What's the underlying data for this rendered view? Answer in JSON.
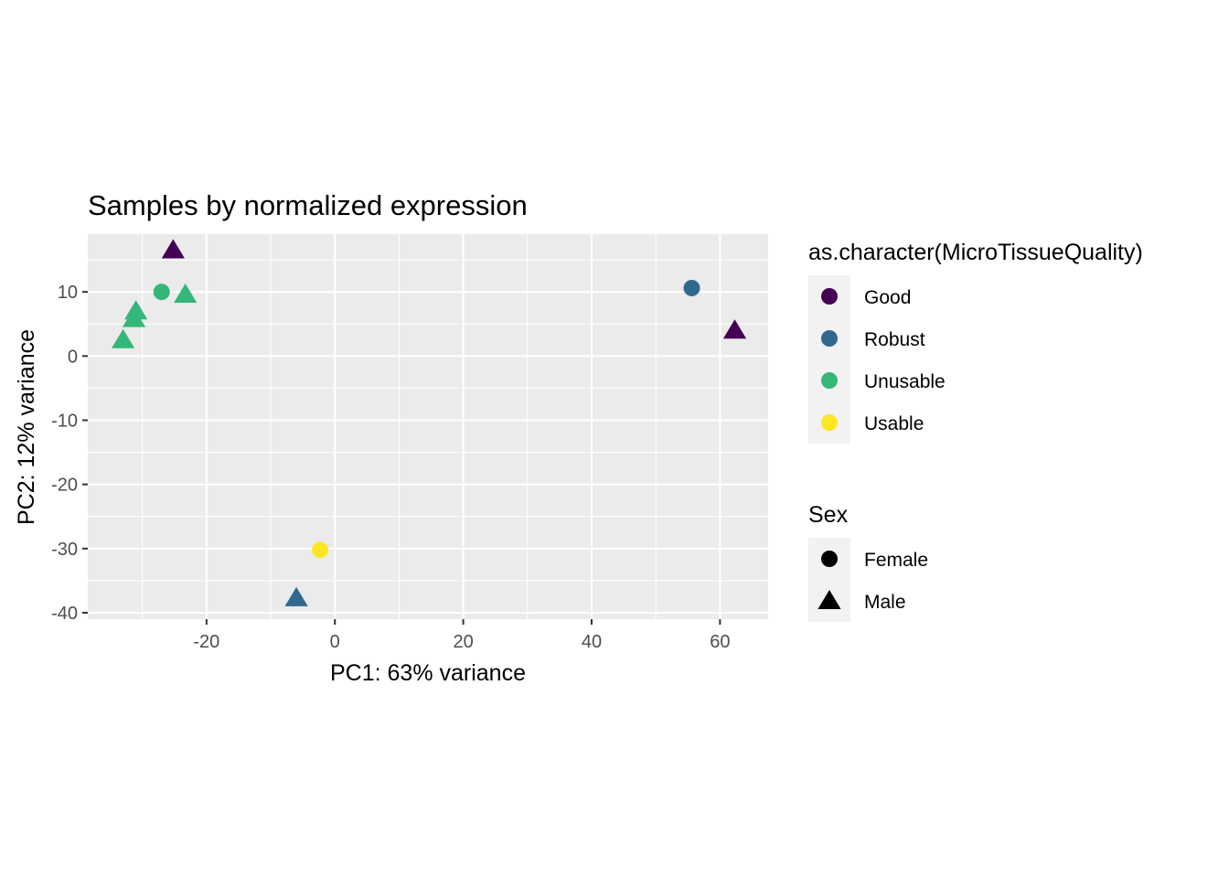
{
  "chart_data": {
    "type": "scatter",
    "title": "Samples by normalized expression",
    "xlabel": "PC1: 63% variance",
    "ylabel": "PC2: 12% variance",
    "xlim": [
      -38.5,
      67.5
    ],
    "ylim": [
      -41,
      19
    ],
    "x_ticks": [
      -20,
      0,
      20,
      40,
      60
    ],
    "y_ticks": [
      -40,
      -30,
      -20,
      -10,
      0,
      10
    ],
    "x_tick_labels": [
      "-20",
      "0",
      "20",
      "40",
      "60"
    ],
    "y_tick_labels": [
      "-40",
      "-30",
      "-20",
      "-10",
      "0",
      "10"
    ],
    "grid": true,
    "legend_position": "right",
    "points": [
      {
        "x": -25.2,
        "y": 16.5,
        "quality": "Good",
        "sex": "Male"
      },
      {
        "x": 62.3,
        "y": 4.0,
        "quality": "Good",
        "sex": "Male"
      },
      {
        "x": 55.6,
        "y": 10.6,
        "quality": "Robust",
        "sex": "Female"
      },
      {
        "x": -6.0,
        "y": -37.7,
        "quality": "Robust",
        "sex": "Male"
      },
      {
        "x": -27.0,
        "y": 10.0,
        "quality": "Unusable",
        "sex": "Female"
      },
      {
        "x": -23.3,
        "y": 9.6,
        "quality": "Unusable",
        "sex": "Male"
      },
      {
        "x": -31.0,
        "y": 7.0,
        "quality": "Unusable",
        "sex": "Male"
      },
      {
        "x": -31.3,
        "y": 5.8,
        "quality": "Unusable",
        "sex": "Male"
      },
      {
        "x": -33.0,
        "y": 2.5,
        "quality": "Unusable",
        "sex": "Male"
      },
      {
        "x": -2.3,
        "y": -30.2,
        "quality": "Usable",
        "sex": "Female"
      }
    ],
    "legends": [
      {
        "title": "as.character(MicroTissueQuality)",
        "entries": [
          {
            "label": "Good",
            "color": "#440154",
            "shape": "circle"
          },
          {
            "label": "Robust",
            "color": "#31688E",
            "shape": "circle"
          },
          {
            "label": "Unusable",
            "color": "#35B779",
            "shape": "circle"
          },
          {
            "label": "Usable",
            "color": "#FDE725",
            "shape": "circle"
          }
        ]
      },
      {
        "title": "Sex",
        "entries": [
          {
            "label": "Female",
            "color": "#000000",
            "shape": "circle"
          },
          {
            "label": "Male",
            "color": "#000000",
            "shape": "triangle"
          }
        ]
      }
    ],
    "colors": {
      "Good": "#440154",
      "Robust": "#31688E",
      "Unusable": "#35B779",
      "Usable": "#FDE725",
      "panel_background": "#EBEBEB",
      "grid_major": "#FFFFFF",
      "legend_key_background": "#F2F2F2"
    }
  }
}
